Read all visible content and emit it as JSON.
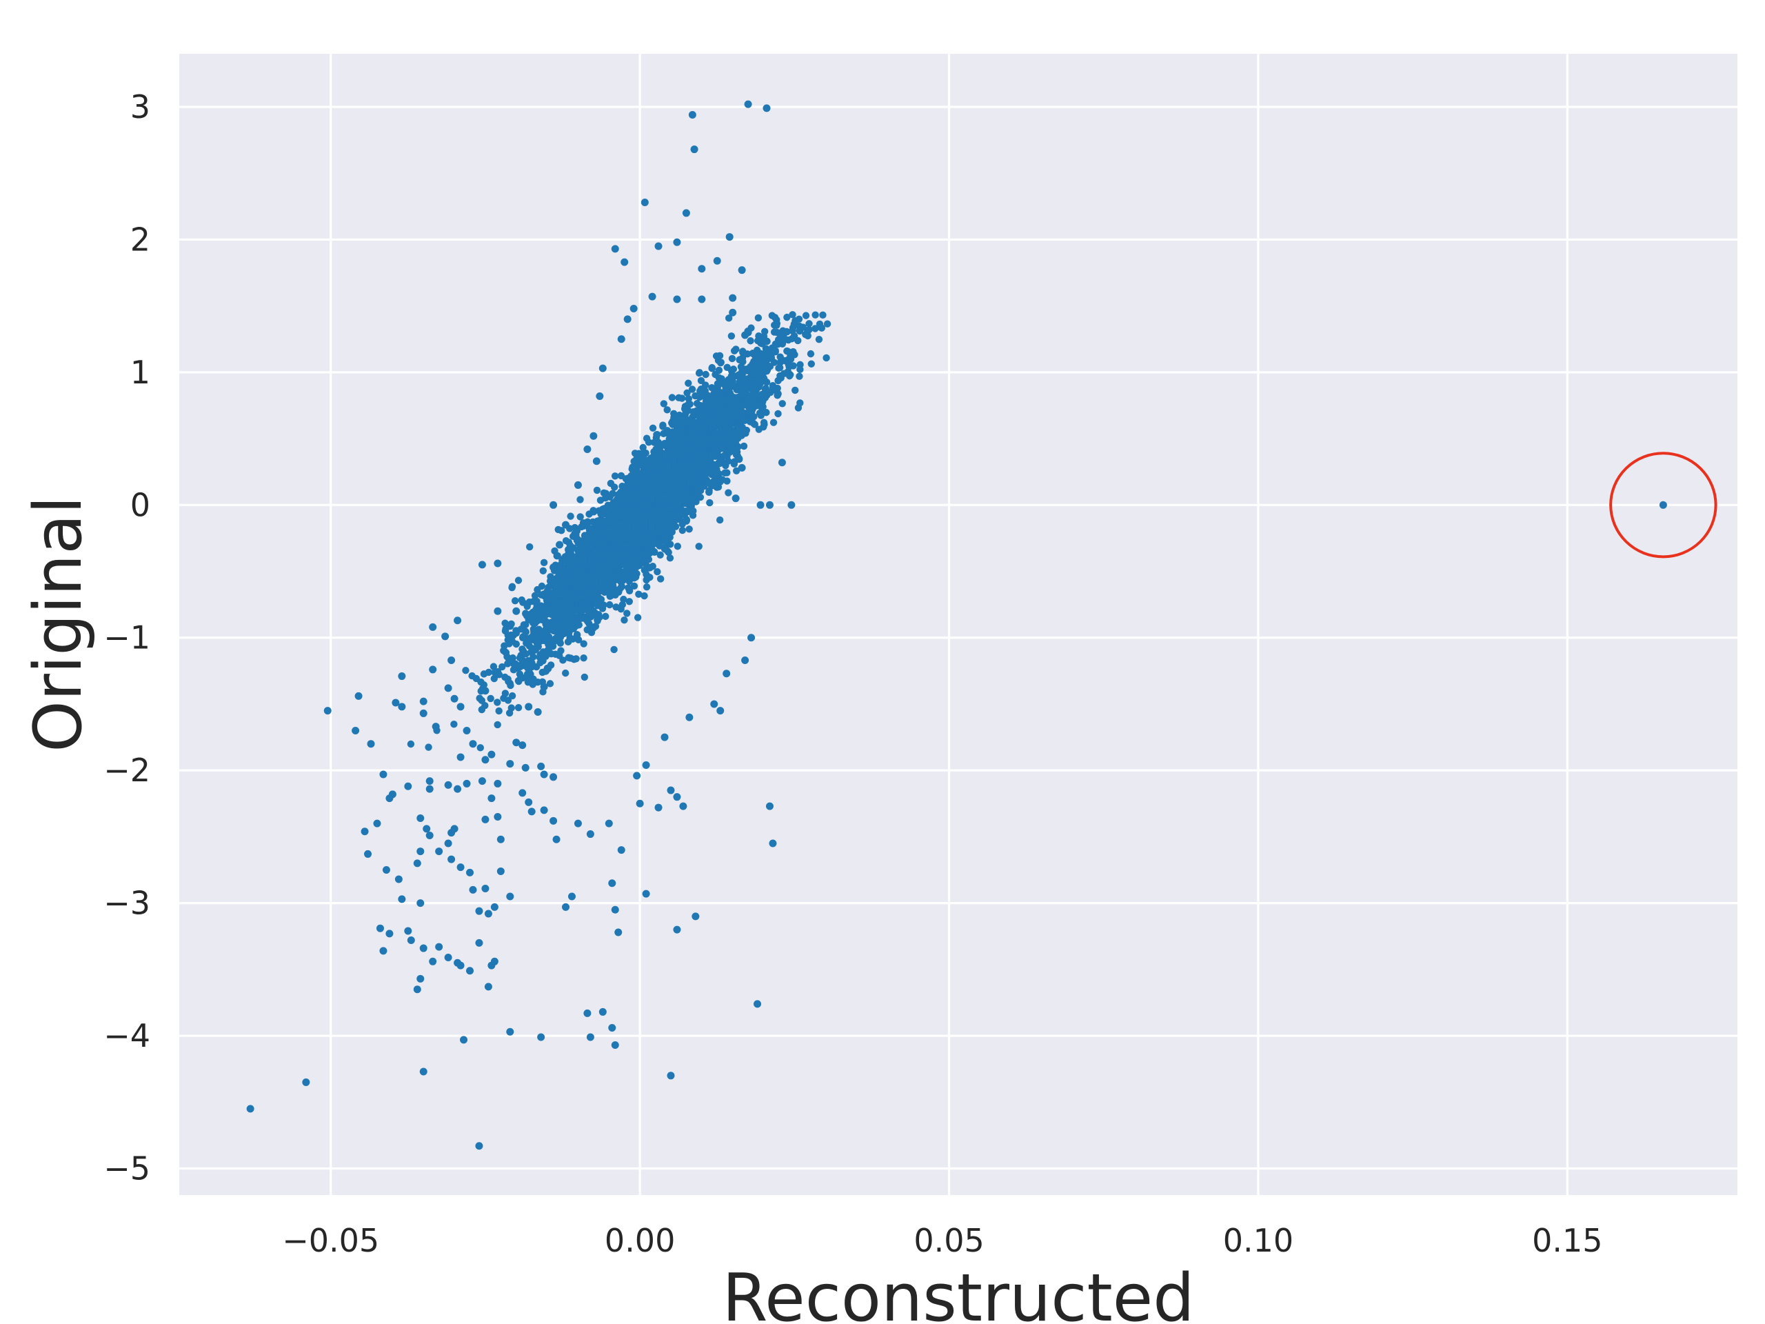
{
  "chart_data": {
    "type": "scatter",
    "title": "",
    "xlabel": "Reconstructed",
    "ylabel": "Original",
    "xlim": [
      -0.0745,
      0.1775
    ],
    "ylim": [
      -5.2,
      3.4
    ],
    "grid": true,
    "xticks": [
      -0.05,
      0.0,
      0.05,
      0.1,
      0.15
    ],
    "xtick_labels": [
      "−0.05",
      "0.00",
      "0.05",
      "0.10",
      "0.15"
    ],
    "yticks": [
      3,
      2,
      1,
      0,
      -1,
      -2,
      -3,
      -4,
      -5
    ],
    "ytick_labels": [
      "3",
      "2",
      "1",
      "0",
      "−1",
      "−2",
      "−3",
      "−4",
      "−5"
    ],
    "colors": {
      "background": "#eaeaf2",
      "points": "#1f77b4",
      "highlight": "#e8321e",
      "grid": "#ffffff"
    },
    "cluster": {
      "description_free": true,
      "center": [
        0.0,
        0.0
      ],
      "slope": 60,
      "count": 4500
    },
    "highlight_circle": {
      "x": 0.1655,
      "y": 0.0,
      "radius_x": 0.0085,
      "radius_y": 0.39
    },
    "series": [
      {
        "points": [
          [
            0.0175,
            3.02
          ],
          [
            0.0205,
            2.99
          ],
          [
            0.0085,
            2.94
          ],
          [
            0.0088,
            2.68
          ],
          [
            0.0008,
            2.28
          ],
          [
            0.0075,
            2.2
          ],
          [
            -0.004,
            1.93
          ],
          [
            0.003,
            1.95
          ],
          [
            0.006,
            1.98
          ],
          [
            0.0145,
            2.02
          ],
          [
            -0.0025,
            1.83
          ],
          [
            0.0125,
            1.84
          ],
          [
            0.0165,
            1.77
          ],
          [
            0.01,
            1.78
          ],
          [
            0.002,
            1.57
          ],
          [
            0.015,
            1.56
          ],
          [
            0.02,
            1.24
          ],
          [
            0.017,
            1.28
          ],
          [
            0.023,
            0.32
          ],
          [
            0.0245,
            0.0
          ],
          [
            0.021,
            0.0
          ],
          [
            0.0195,
            0.0
          ],
          [
            -0.014,
            0.0
          ],
          [
            0.016,
            0.58
          ],
          [
            0.0165,
            0.28
          ],
          [
            0.0155,
            0.05
          ],
          [
            -0.007,
            0.33
          ],
          [
            -0.0075,
            -0.05
          ],
          [
            -0.014,
            -0.47
          ],
          [
            -0.0255,
            -0.45
          ],
          [
            -0.023,
            -0.44
          ],
          [
            -0.023,
            -0.8
          ],
          [
            -0.02,
            -0.8
          ],
          [
            -0.017,
            -0.89
          ],
          [
            -0.0295,
            -0.87
          ],
          [
            -0.0335,
            -0.92
          ],
          [
            -0.0315,
            -0.99
          ],
          [
            -0.0305,
            -1.17
          ],
          [
            -0.0335,
            -1.24
          ],
          [
            -0.0385,
            -1.29
          ],
          [
            -0.0395,
            -1.49
          ],
          [
            -0.0385,
            -1.52
          ],
          [
            -0.0505,
            -1.55
          ],
          [
            -0.0455,
            -1.44
          ],
          [
            -0.035,
            -1.48
          ],
          [
            -0.035,
            -1.57
          ],
          [
            -0.031,
            -1.38
          ],
          [
            -0.029,
            -1.52
          ],
          [
            -0.03,
            -1.46
          ],
          [
            -0.025,
            -1.4
          ],
          [
            -0.018,
            -1.52
          ],
          [
            -0.0165,
            -1.56
          ],
          [
            -0.018,
            -1.29
          ],
          [
            -0.015,
            -1.12
          ],
          [
            -0.013,
            -1.03
          ],
          [
            -0.0155,
            -1.37
          ],
          [
            -0.046,
            -1.7
          ],
          [
            -0.0435,
            -1.8
          ],
          [
            -0.033,
            -1.67
          ],
          [
            -0.028,
            -1.7
          ],
          [
            -0.027,
            -1.8
          ],
          [
            -0.029,
            -1.9
          ],
          [
            -0.025,
            -1.92
          ],
          [
            -0.024,
            -1.88
          ],
          [
            -0.02,
            -1.79
          ],
          [
            -0.019,
            -1.81
          ],
          [
            -0.021,
            -1.95
          ],
          [
            -0.0185,
            -1.98
          ],
          [
            -0.016,
            -1.97
          ],
          [
            -0.0155,
            -2.03
          ],
          [
            -0.014,
            -2.05
          ],
          [
            -0.0415,
            -2.03
          ],
          [
            -0.04,
            -2.18
          ],
          [
            -0.0405,
            -2.21
          ],
          [
            -0.0375,
            -2.12
          ],
          [
            -0.034,
            -2.08
          ],
          [
            -0.034,
            -2.14
          ],
          [
            -0.031,
            -2.11
          ],
          [
            -0.0295,
            -2.14
          ],
          [
            -0.028,
            -2.1
          ],
          [
            -0.0255,
            -2.08
          ],
          [
            -0.023,
            -2.1
          ],
          [
            -0.019,
            -2.17
          ],
          [
            -0.018,
            -2.24
          ],
          [
            -0.0175,
            -2.31
          ],
          [
            -0.0155,
            -2.3
          ],
          [
            -0.014,
            -2.38
          ],
          [
            -0.0135,
            -2.52
          ],
          [
            -0.0445,
            -2.46
          ],
          [
            -0.044,
            -2.63
          ],
          [
            -0.0425,
            -2.4
          ],
          [
            -0.0355,
            -2.36
          ],
          [
            -0.0345,
            -2.44
          ],
          [
            -0.034,
            -2.49
          ],
          [
            -0.0355,
            -2.61
          ],
          [
            -0.036,
            -2.7
          ],
          [
            -0.0325,
            -2.61
          ],
          [
            -0.031,
            -2.55
          ],
          [
            -0.0305,
            -2.47
          ],
          [
            -0.03,
            -2.44
          ],
          [
            -0.0305,
            -2.67
          ],
          [
            -0.029,
            -2.73
          ],
          [
            -0.0275,
            -2.77
          ],
          [
            -0.025,
            -2.37
          ],
          [
            -0.024,
            -2.21
          ],
          [
            -0.023,
            -2.35
          ],
          [
            -0.0225,
            -2.52
          ],
          [
            -0.0225,
            -2.76
          ],
          [
            -0.021,
            -2.95
          ],
          [
            -0.041,
            -2.75
          ],
          [
            -0.039,
            -2.82
          ],
          [
            -0.0385,
            -2.97
          ],
          [
            -0.0355,
            -3.0
          ],
          [
            -0.0405,
            -3.23
          ],
          [
            -0.042,
            -3.19
          ],
          [
            -0.0415,
            -3.36
          ],
          [
            -0.0375,
            -3.21
          ],
          [
            -0.037,
            -3.28
          ],
          [
            -0.035,
            -3.34
          ],
          [
            -0.0355,
            -3.57
          ],
          [
            -0.036,
            -3.65
          ],
          [
            -0.0335,
            -3.44
          ],
          [
            -0.0325,
            -3.33
          ],
          [
            -0.031,
            -3.41
          ],
          [
            -0.0295,
            -3.45
          ],
          [
            -0.029,
            -3.47
          ],
          [
            -0.0275,
            -3.51
          ],
          [
            -0.026,
            -3.3
          ],
          [
            -0.026,
            -3.06
          ],
          [
            -0.0245,
            -3.08
          ],
          [
            -0.0235,
            -3.44
          ],
          [
            -0.024,
            -3.47
          ],
          [
            -0.0245,
            -3.63
          ],
          [
            -0.0235,
            -3.03
          ],
          [
            -0.025,
            -2.89
          ],
          [
            -0.027,
            -2.9
          ],
          [
            -0.0285,
            -4.03
          ],
          [
            -0.021,
            -3.97
          ],
          [
            -0.016,
            -4.01
          ],
          [
            -0.0085,
            -3.83
          ],
          [
            -0.006,
            -3.82
          ],
          [
            -0.0045,
            -3.94
          ],
          [
            -0.008,
            -4.01
          ],
          [
            -0.004,
            -4.07
          ],
          [
            -0.035,
            -4.27
          ],
          [
            -0.054,
            -4.35
          ],
          [
            -0.063,
            -4.55
          ],
          [
            -0.026,
            -4.83
          ],
          [
            0.005,
            -4.3
          ],
          [
            0.006,
            -3.2
          ],
          [
            0.009,
            -3.1
          ],
          [
            -0.0035,
            -3.22
          ],
          [
            -0.004,
            -3.05
          ],
          [
            0.001,
            -2.93
          ],
          [
            -0.0045,
            -2.85
          ],
          [
            -0.012,
            -3.03
          ],
          [
            -0.011,
            -2.95
          ],
          [
            -0.003,
            -2.6
          ],
          [
            -0.01,
            -2.4
          ],
          [
            -0.008,
            -2.48
          ],
          [
            -0.005,
            -2.4
          ],
          [
            0.0,
            -2.25
          ],
          [
            0.003,
            -2.28
          ],
          [
            0.006,
            -2.2
          ],
          [
            0.007,
            -2.27
          ],
          [
            0.005,
            -2.15
          ],
          [
            0.021,
            -2.27
          ],
          [
            0.0215,
            -2.55
          ],
          [
            0.019,
            -3.76
          ],
          [
            -0.0005,
            -2.04
          ],
          [
            0.001,
            -1.96
          ],
          [
            0.004,
            -1.75
          ],
          [
            0.008,
            -1.6
          ],
          [
            0.012,
            -1.5
          ],
          [
            0.013,
            -1.55
          ],
          [
            0.014,
            -1.27
          ],
          [
            0.017,
            -1.17
          ],
          [
            0.018,
            -1.0
          ],
          [
            0.016,
            0.35
          ],
          [
            0.0145,
            0.45
          ],
          [
            0.0175,
            0.95
          ],
          [
            0.015,
            1.45
          ],
          [
            0.0175,
            1.3
          ],
          [
            0.01,
            1.55
          ],
          [
            0.006,
            1.55
          ],
          [
            -0.001,
            1.48
          ],
          [
            -0.002,
            1.4
          ],
          [
            -0.003,
            1.25
          ],
          [
            -0.006,
            1.03
          ],
          [
            -0.0065,
            0.82
          ],
          [
            -0.0075,
            0.52
          ],
          [
            -0.0085,
            0.42
          ],
          [
            -0.01,
            0.15
          ],
          [
            -0.012,
            -0.15
          ],
          [
            -0.013,
            -0.3
          ],
          [
            -0.014,
            -0.7
          ],
          [
            -0.0125,
            -0.8
          ],
          [
            -0.0155,
            -1.02
          ],
          [
            0.1655,
            0.0
          ]
        ]
      }
    ]
  }
}
